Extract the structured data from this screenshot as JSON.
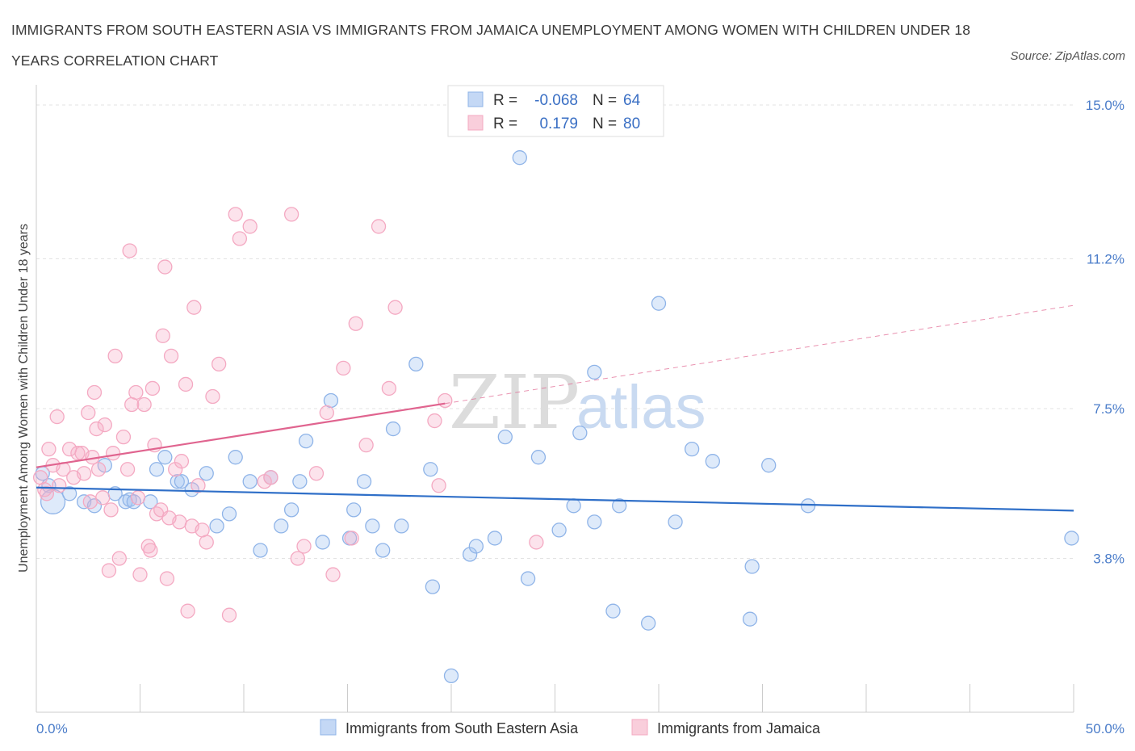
{
  "title": "IMMIGRANTS FROM SOUTH EASTERN ASIA VS IMMIGRANTS FROM JAMAICA UNEMPLOYMENT AMONG WOMEN WITH CHILDREN UNDER 18 YEARS CORRELATION CHART",
  "source": "Source: ZipAtlas.com",
  "watermark": {
    "zip": "ZIP",
    "atlas": "atlas"
  },
  "legend_top": [
    {
      "r_label": "R =",
      "r_value": "-0.068",
      "n_label": "N =",
      "n_value": "64"
    },
    {
      "r_label": "R =",
      "r_value": "0.179",
      "n_label": "N =",
      "n_value": "80"
    }
  ],
  "chart_data": {
    "type": "scatter",
    "xlabel": "",
    "ylabel": "Unemployment Among Women with Children Under 18 years",
    "xlim": [
      0,
      50
    ],
    "ylim": [
      0,
      15.3
    ],
    "x_tick_labels": [
      "0.0%",
      "50.0%"
    ],
    "y_ticks": [
      3.8,
      7.5,
      11.2,
      15.0
    ],
    "y_tick_labels": [
      "3.8%",
      "7.5%",
      "11.2%",
      "15.0%"
    ],
    "grid": "horizontal dashed",
    "legend_position": "bottom",
    "series": [
      {
        "name": "Immigrants from South Eastern Asia",
        "color": "#8fb4e8",
        "trend_color": "#2f6fc8",
        "trend": {
          "x": [
            0,
            50
          ],
          "y": [
            5.55,
            4.98
          ]
        },
        "points": [
          [
            0.3,
            5.9
          ],
          [
            0.6,
            5.6
          ],
          [
            0.8,
            5.2
          ],
          [
            1.6,
            5.4
          ],
          [
            2.3,
            5.2
          ],
          [
            2.8,
            5.1
          ],
          [
            3.3,
            6.1
          ],
          [
            3.8,
            5.4
          ],
          [
            4.3,
            5.2
          ],
          [
            4.5,
            5.25
          ],
          [
            4.7,
            5.2
          ],
          [
            5.5,
            5.2
          ],
          [
            5.8,
            6.0
          ],
          [
            6.2,
            6.3
          ],
          [
            6.8,
            5.7
          ],
          [
            7.0,
            5.7
          ],
          [
            7.5,
            5.5
          ],
          [
            8.2,
            5.9
          ],
          [
            8.7,
            4.6
          ],
          [
            9.3,
            4.9
          ],
          [
            9.6,
            6.3
          ],
          [
            10.3,
            5.7
          ],
          [
            10.8,
            4.0
          ],
          [
            11.3,
            5.8
          ],
          [
            11.8,
            4.6
          ],
          [
            12.3,
            5.0
          ],
          [
            12.7,
            5.7
          ],
          [
            13.0,
            6.7
          ],
          [
            13.8,
            4.2
          ],
          [
            14.2,
            7.7
          ],
          [
            15.3,
            5.0
          ],
          [
            15.1,
            4.3
          ],
          [
            15.8,
            5.7
          ],
          [
            16.2,
            4.6
          ],
          [
            16.7,
            4.0
          ],
          [
            17.2,
            7.0
          ],
          [
            17.6,
            4.6
          ],
          [
            18.3,
            8.6
          ],
          [
            19.0,
            6.0
          ],
          [
            19.1,
            3.1
          ],
          [
            20.0,
            0.9
          ],
          [
            20.9,
            3.9
          ],
          [
            21.2,
            4.1
          ],
          [
            22.1,
            4.3
          ],
          [
            22.6,
            6.8
          ],
          [
            23.3,
            13.7
          ],
          [
            23.7,
            3.3
          ],
          [
            24.2,
            6.3
          ],
          [
            25.2,
            4.5
          ],
          [
            25.9,
            5.1
          ],
          [
            26.2,
            6.9
          ],
          [
            26.9,
            8.4
          ],
          [
            26.9,
            4.7
          ],
          [
            27.8,
            2.5
          ],
          [
            28.1,
            5.1
          ],
          [
            29.5,
            2.2
          ],
          [
            30.0,
            10.1
          ],
          [
            30.8,
            4.7
          ],
          [
            31.6,
            6.5
          ],
          [
            32.6,
            6.2
          ],
          [
            34.5,
            3.6
          ],
          [
            34.4,
            2.3
          ],
          [
            35.3,
            6.1
          ],
          [
            37.2,
            5.1
          ],
          [
            49.9,
            4.3
          ]
        ]
      },
      {
        "name": "Immigrants from Jamaica",
        "color": "#f4a9c2",
        "trend_color": "#e0648f",
        "trend": {
          "x": [
            0,
            50
          ],
          "y": [
            6.05,
            10.05
          ]
        },
        "points": [
          [
            0.2,
            5.8
          ],
          [
            0.4,
            5.5
          ],
          [
            0.6,
            6.5
          ],
          [
            0.8,
            6.1
          ],
          [
            1.0,
            7.3
          ],
          [
            1.3,
            6.0
          ],
          [
            1.6,
            6.5
          ],
          [
            1.8,
            5.8
          ],
          [
            2.0,
            6.4
          ],
          [
            2.2,
            6.4
          ],
          [
            2.3,
            5.9
          ],
          [
            2.5,
            7.4
          ],
          [
            2.7,
            6.3
          ],
          [
            2.8,
            7.9
          ],
          [
            2.9,
            7.0
          ],
          [
            3.0,
            6.0
          ],
          [
            3.2,
            5.3
          ],
          [
            3.3,
            7.1
          ],
          [
            3.5,
            3.5
          ],
          [
            3.6,
            5.0
          ],
          [
            3.7,
            6.4
          ],
          [
            3.8,
            8.8
          ],
          [
            4.0,
            3.8
          ],
          [
            4.2,
            6.8
          ],
          [
            4.4,
            6.0
          ],
          [
            4.5,
            11.4
          ],
          [
            4.6,
            7.6
          ],
          [
            4.8,
            7.9
          ],
          [
            5.0,
            3.4
          ],
          [
            5.2,
            7.6
          ],
          [
            5.4,
            4.1
          ],
          [
            5.5,
            4.0
          ],
          [
            5.6,
            8.0
          ],
          [
            5.7,
            6.6
          ],
          [
            5.8,
            4.9
          ],
          [
            6.0,
            5.0
          ],
          [
            6.1,
            9.3
          ],
          [
            6.2,
            11.0
          ],
          [
            6.3,
            3.3
          ],
          [
            6.5,
            8.8
          ],
          [
            6.7,
            6.0
          ],
          [
            6.9,
            4.7
          ],
          [
            7.0,
            6.2
          ],
          [
            7.2,
            8.1
          ],
          [
            7.3,
            2.5
          ],
          [
            7.5,
            4.6
          ],
          [
            7.6,
            10.0
          ],
          [
            7.8,
            5.6
          ],
          [
            8.0,
            4.5
          ],
          [
            8.2,
            4.2
          ],
          [
            8.5,
            7.8
          ],
          [
            8.8,
            8.6
          ],
          [
            9.3,
            2.4
          ],
          [
            9.6,
            12.3
          ],
          [
            9.8,
            11.7
          ],
          [
            10.3,
            12.0
          ],
          [
            11.0,
            5.7
          ],
          [
            11.3,
            5.8
          ],
          [
            12.3,
            12.3
          ],
          [
            12.6,
            3.8
          ],
          [
            12.9,
            4.1
          ],
          [
            13.5,
            5.9
          ],
          [
            14.0,
            7.4
          ],
          [
            14.3,
            3.4
          ],
          [
            14.8,
            8.5
          ],
          [
            15.2,
            4.3
          ],
          [
            15.4,
            9.6
          ],
          [
            15.9,
            6.6
          ],
          [
            16.5,
            12.0
          ],
          [
            17.0,
            8.0
          ],
          [
            17.3,
            10.0
          ],
          [
            19.2,
            7.2
          ],
          [
            19.4,
            5.6
          ],
          [
            19.7,
            7.7
          ],
          [
            24.1,
            4.2
          ],
          [
            0.5,
            5.4
          ],
          [
            1.1,
            5.6
          ],
          [
            2.6,
            5.2
          ],
          [
            4.9,
            5.3
          ],
          [
            6.4,
            4.8
          ]
        ]
      }
    ]
  }
}
